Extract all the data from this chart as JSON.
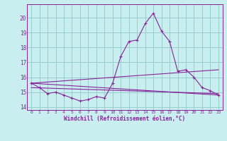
{
  "background_color": "#c8eef0",
  "grid_color": "#99cccc",
  "line_color": "#882299",
  "hours": [
    0,
    1,
    2,
    3,
    4,
    5,
    6,
    7,
    8,
    9,
    10,
    11,
    12,
    13,
    14,
    15,
    16,
    17,
    18,
    19,
    20,
    21,
    22,
    23
  ],
  "main_series": [
    15.6,
    15.3,
    14.9,
    15.0,
    14.8,
    14.6,
    14.4,
    14.5,
    14.7,
    14.6,
    15.6,
    17.4,
    18.4,
    18.5,
    19.6,
    20.3,
    19.1,
    18.4,
    16.4,
    16.5,
    16.0,
    15.3,
    15.1,
    14.8
  ],
  "straight1": [
    15.6,
    14.8
  ],
  "straight2": [
    15.6,
    16.5
  ],
  "straight3": [
    15.3,
    14.9
  ],
  "ylim": [
    13.8,
    20.9
  ],
  "xlim": [
    -0.5,
    23.5
  ],
  "yticks": [
    14,
    15,
    16,
    17,
    18,
    19,
    20
  ],
  "xticks": [
    0,
    1,
    2,
    3,
    4,
    5,
    6,
    7,
    8,
    9,
    10,
    11,
    12,
    13,
    14,
    15,
    16,
    17,
    18,
    19,
    20,
    21,
    22,
    23
  ],
  "xlabel": "Windchill (Refroidissement éolien,°C)"
}
